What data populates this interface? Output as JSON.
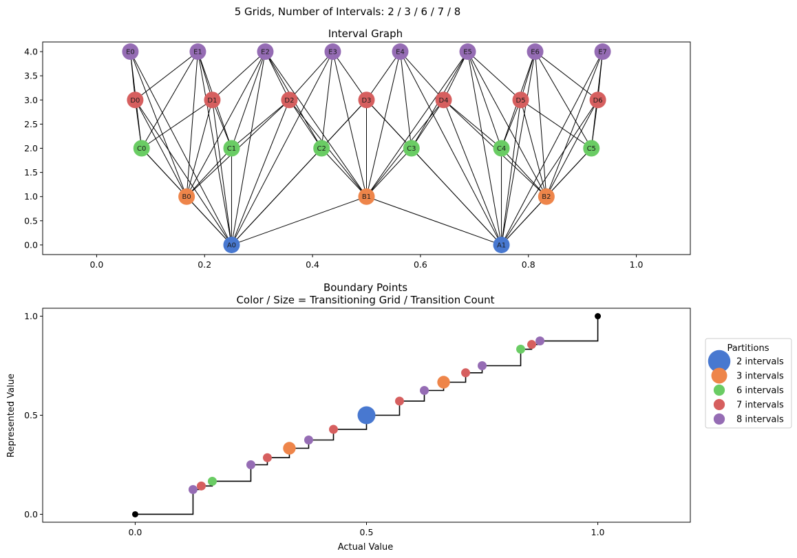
{
  "suptitle": "5 Grids, Number of Intervals: 2 / 3 / 6 / 7 / 8",
  "colors": {
    "grid_2": "#4878d0",
    "grid_3": "#ee854a",
    "grid_6": "#6acc64",
    "grid_7": "#d65f5f",
    "grid_8": "#956cb4",
    "edges": "#000000",
    "endpoints": "#000000"
  },
  "chart_data": [
    {
      "type": "network",
      "title": "Interval Graph",
      "xlim": [
        -0.1,
        1.1
      ],
      "ylim": [
        -0.2,
        4.2
      ],
      "xticks": [
        "0.0",
        "0.2",
        "0.4",
        "0.6",
        "0.8",
        "1.0"
      ],
      "yticks": [
        "0.0",
        "0.5",
        "1.0",
        "1.5",
        "2.0",
        "2.5",
        "3.0",
        "3.5",
        "4.0"
      ],
      "nodes": [
        {
          "id": "A0",
          "label": "A0",
          "x": 0.25,
          "y": 0,
          "grid": "grid_2",
          "lo": 0.0,
          "hi": 0.5
        },
        {
          "id": "A1",
          "label": "A1",
          "x": 0.75,
          "y": 0,
          "grid": "grid_2",
          "lo": 0.5,
          "hi": 1.0
        },
        {
          "id": "B0",
          "label": "B0",
          "x": 0.1667,
          "y": 1,
          "grid": "grid_3",
          "lo": 0.0,
          "hi": 0.3333
        },
        {
          "id": "B1",
          "label": "B1",
          "x": 0.5,
          "y": 1,
          "grid": "grid_3",
          "lo": 0.3333,
          "hi": 0.6667
        },
        {
          "id": "B2",
          "label": "B2",
          "x": 0.8333,
          "y": 1,
          "grid": "grid_3",
          "lo": 0.6667,
          "hi": 1.0
        },
        {
          "id": "C0",
          "label": "C0",
          "x": 0.0833,
          "y": 2,
          "grid": "grid_6",
          "lo": 0.0,
          "hi": 0.1667
        },
        {
          "id": "C1",
          "label": "C1",
          "x": 0.25,
          "y": 2,
          "grid": "grid_6",
          "lo": 0.1667,
          "hi": 0.3333
        },
        {
          "id": "C2",
          "label": "C2",
          "x": 0.4167,
          "y": 2,
          "grid": "grid_6",
          "lo": 0.3333,
          "hi": 0.5
        },
        {
          "id": "C3",
          "label": "C3",
          "x": 0.5833,
          "y": 2,
          "grid": "grid_6",
          "lo": 0.5,
          "hi": 0.6667
        },
        {
          "id": "C4",
          "label": "C4",
          "x": 0.75,
          "y": 2,
          "grid": "grid_6",
          "lo": 0.6667,
          "hi": 0.8333
        },
        {
          "id": "C5",
          "label": "C5",
          "x": 0.9167,
          "y": 2,
          "grid": "grid_6",
          "lo": 0.8333,
          "hi": 1.0
        },
        {
          "id": "D0",
          "label": "D0",
          "x": 0.0714,
          "y": 3,
          "grid": "grid_7",
          "lo": 0.0,
          "hi": 0.1429
        },
        {
          "id": "D1",
          "label": "D1",
          "x": 0.2143,
          "y": 3,
          "grid": "grid_7",
          "lo": 0.1429,
          "hi": 0.2857
        },
        {
          "id": "D2",
          "label": "D2",
          "x": 0.3571,
          "y": 3,
          "grid": "grid_7",
          "lo": 0.2857,
          "hi": 0.4286
        },
        {
          "id": "D3",
          "label": "D3",
          "x": 0.5,
          "y": 3,
          "grid": "grid_7",
          "lo": 0.4286,
          "hi": 0.5714
        },
        {
          "id": "D4",
          "label": "D4",
          "x": 0.6429,
          "y": 3,
          "grid": "grid_7",
          "lo": 0.5714,
          "hi": 0.7143
        },
        {
          "id": "D5",
          "label": "D5",
          "x": 0.7857,
          "y": 3,
          "grid": "grid_7",
          "lo": 0.7143,
          "hi": 0.8571
        },
        {
          "id": "D6",
          "label": "D6",
          "x": 0.9286,
          "y": 3,
          "grid": "grid_7",
          "lo": 0.8571,
          "hi": 1.0
        },
        {
          "id": "E0",
          "label": "E0",
          "x": 0.0625,
          "y": 4,
          "grid": "grid_8",
          "lo": 0.0,
          "hi": 0.125
        },
        {
          "id": "E1",
          "label": "E1",
          "x": 0.1875,
          "y": 4,
          "grid": "grid_8",
          "lo": 0.125,
          "hi": 0.25
        },
        {
          "id": "E2",
          "label": "E2",
          "x": 0.3125,
          "y": 4,
          "grid": "grid_8",
          "lo": 0.25,
          "hi": 0.375
        },
        {
          "id": "E3",
          "label": "E3",
          "x": 0.4375,
          "y": 4,
          "grid": "grid_8",
          "lo": 0.375,
          "hi": 0.5
        },
        {
          "id": "E4",
          "label": "E4",
          "x": 0.5625,
          "y": 4,
          "grid": "grid_8",
          "lo": 0.5,
          "hi": 0.625
        },
        {
          "id": "E5",
          "label": "E5",
          "x": 0.6875,
          "y": 4,
          "grid": "grid_8",
          "lo": 0.625,
          "hi": 0.75
        },
        {
          "id": "E6",
          "label": "E6",
          "x": 0.8125,
          "y": 4,
          "grid": "grid_8",
          "lo": 0.75,
          "hi": 0.875
        },
        {
          "id": "E7",
          "label": "E7",
          "x": 0.9375,
          "y": 4,
          "grid": "grid_8",
          "lo": 0.875,
          "hi": 1.0
        }
      ],
      "edges": "each pair of nodes on different levels whose intervals overlap"
    },
    {
      "type": "scatter",
      "title": "Boundary Points",
      "subtitle": "Color / Size = Transitioning Grid / Transition Count",
      "xlabel": "Actual Value",
      "ylabel": "Represented Value",
      "xlim": [
        -0.2,
        1.2
      ],
      "ylim": [
        -0.04,
        1.04
      ],
      "xticks": [
        "0.0",
        "0.5",
        "1.0"
      ],
      "yticks": [
        "0.0",
        "0.5",
        "1.0"
      ],
      "step_line": {
        "x": [
          0,
          0.125,
          0.1429,
          0.1667,
          0.25,
          0.2857,
          0.3333,
          0.375,
          0.4286,
          0.5,
          0.5714,
          0.625,
          0.6667,
          0.7143,
          0.75,
          0.8333,
          0.8571,
          0.875,
          1.0
        ],
        "y": [
          0,
          0.125,
          0.1429,
          0.1667,
          0.25,
          0.2857,
          0.3333,
          0.375,
          0.4286,
          0.5,
          0.5714,
          0.625,
          0.6667,
          0.7143,
          0.75,
          0.8333,
          0.8571,
          0.875,
          1.0
        ]
      },
      "endpoints": [
        {
          "x": 0,
          "y": 0
        },
        {
          "x": 1,
          "y": 1
        }
      ],
      "points": [
        {
          "x": 0.125,
          "y": 0.125,
          "grid": "grid_8",
          "count": 1
        },
        {
          "x": 0.1429,
          "y": 0.1429,
          "grid": "grid_7",
          "count": 1
        },
        {
          "x": 0.1667,
          "y": 0.1667,
          "grid": "grid_6",
          "count": 1
        },
        {
          "x": 0.25,
          "y": 0.25,
          "grid": "grid_8",
          "count": 1
        },
        {
          "x": 0.2857,
          "y": 0.2857,
          "grid": "grid_7",
          "count": 1
        },
        {
          "x": 0.3333,
          "y": 0.3333,
          "grid": "grid_3",
          "count": 2
        },
        {
          "x": 0.375,
          "y": 0.375,
          "grid": "grid_8",
          "count": 1
        },
        {
          "x": 0.4286,
          "y": 0.4286,
          "grid": "grid_7",
          "count": 1
        },
        {
          "x": 0.5,
          "y": 0.5,
          "grid": "grid_2",
          "count": 4
        },
        {
          "x": 0.5714,
          "y": 0.5714,
          "grid": "grid_7",
          "count": 1
        },
        {
          "x": 0.625,
          "y": 0.625,
          "grid": "grid_8",
          "count": 1
        },
        {
          "x": 0.6667,
          "y": 0.6667,
          "grid": "grid_3",
          "count": 2
        },
        {
          "x": 0.7143,
          "y": 0.7143,
          "grid": "grid_7",
          "count": 1
        },
        {
          "x": 0.75,
          "y": 0.75,
          "grid": "grid_8",
          "count": 1
        },
        {
          "x": 0.8333,
          "y": 0.8333,
          "grid": "grid_6",
          "count": 1
        },
        {
          "x": 0.8571,
          "y": 0.8571,
          "grid": "grid_7",
          "count": 1
        },
        {
          "x": 0.875,
          "y": 0.875,
          "grid": "grid_8",
          "count": 1
        }
      ],
      "legend": {
        "title": "Partitions",
        "placement": "right",
        "entries": [
          {
            "label": "2 intervals",
            "grid": "grid_2",
            "count": 4
          },
          {
            "label": "3 intervals",
            "grid": "grid_3",
            "count": 2
          },
          {
            "label": "6 intervals",
            "grid": "grid_6",
            "count": 1
          },
          {
            "label": "7 intervals",
            "grid": "grid_7",
            "count": 1
          },
          {
            "label": "8 intervals",
            "grid": "grid_8",
            "count": 1
          }
        ]
      }
    }
  ]
}
